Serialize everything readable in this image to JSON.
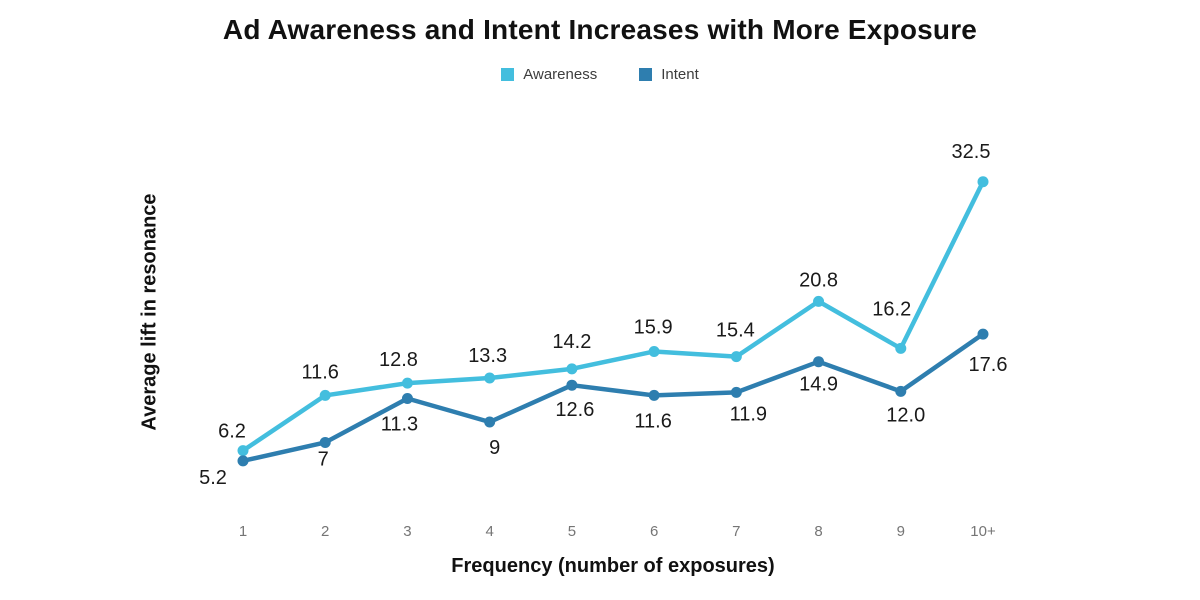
{
  "page": {
    "background": "#ffffff"
  },
  "chart_data": {
    "type": "line",
    "title": "Ad Awareness and Intent Increases with More Exposure",
    "xlabel": "Frequency (number of exposures)",
    "ylabel": "Average lift in resonance",
    "categories": [
      "1",
      "2",
      "3",
      "4",
      "5",
      "6",
      "7",
      "8",
      "9",
      "10+"
    ],
    "ylim": [
      0,
      36
    ],
    "grid": false,
    "legend_position": "top-center",
    "marker": "circle",
    "series": [
      {
        "name": "Awareness",
        "color": "#43BEDE",
        "values": [
          6.2,
          11.6,
          12.8,
          13.3,
          14.2,
          15.9,
          15.4,
          20.8,
          16.2,
          32.5
        ],
        "labels": [
          "6.2",
          "11.6",
          "12.8",
          "13.3",
          "14.2",
          "15.9",
          "15.4",
          "20.8",
          "16.2",
          "32.5"
        ],
        "label_dx": [
          -11,
          -5,
          -9,
          -2,
          0,
          -1,
          -1,
          0,
          -9,
          -12
        ],
        "label_dy": [
          -19,
          -23,
          -23,
          -22,
          -27,
          -24,
          -26,
          -21,
          -39,
          -30
        ]
      },
      {
        "name": "Intent",
        "color": "#2E7EAF",
        "values": [
          5.2,
          7,
          11.3,
          9,
          12.6,
          11.6,
          11.9,
          14.9,
          12.0,
          17.6
        ],
        "labels": [
          "5.2",
          "7",
          "11.3",
          "9",
          "12.6",
          "11.6",
          "11.9",
          "14.9",
          "12.0",
          "17.6"
        ],
        "label_dx": [
          -30,
          -2,
          -8,
          5,
          3,
          -1,
          12,
          0,
          5,
          5
        ],
        "label_dy": [
          17,
          17,
          26,
          26,
          25,
          26,
          22,
          23,
          24,
          31
        ]
      }
    ],
    "colors": {
      "title": "#111111",
      "data_label": "#1a1a1a",
      "tick_label": "#757575",
      "legend_label": "#3d3d3d",
      "axis_title": "#111111"
    }
  }
}
